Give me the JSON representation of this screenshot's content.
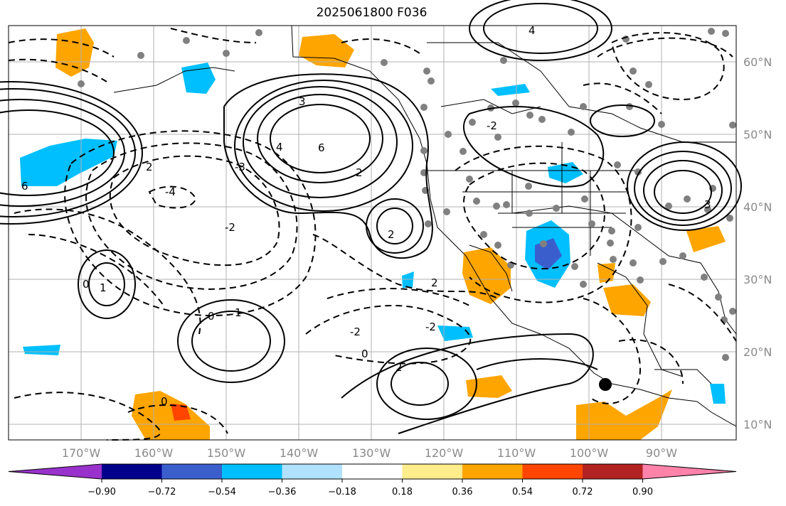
{
  "title": "2025061800 F036",
  "map": {
    "lat_labels": [
      "60°N",
      "50°N",
      "40°N",
      "30°N",
      "20°N",
      "10°N"
    ],
    "lon_labels": [
      "170°W",
      "160°W",
      "150°W",
      "140°W",
      "130°W",
      "120°W",
      "110°W",
      "100°W",
      "90°W"
    ],
    "contour_labels": [
      "6",
      "4",
      "3",
      "2",
      "2",
      "1",
      "0",
      "2",
      "-2",
      "-3",
      "-4",
      "2",
      "0",
      "-2",
      "-2",
      "2",
      "1",
      "0",
      "6",
      "3",
      "-2",
      "0",
      "4"
    ]
  },
  "colorbar": {
    "ticks": [
      "−0.90",
      "−0.72",
      "−0.54",
      "−0.36",
      "−0.18",
      "0.18",
      "0.36",
      "0.54",
      "0.72",
      "0.90"
    ],
    "colors": [
      "#9932cc",
      "#00008b",
      "#3a5fcd",
      "#00bfff",
      "#b0e2ff",
      "#ffffff",
      "#ffec8b",
      "#ffa500",
      "#ff4500",
      "#b22222",
      "#ff82ab"
    ]
  }
}
